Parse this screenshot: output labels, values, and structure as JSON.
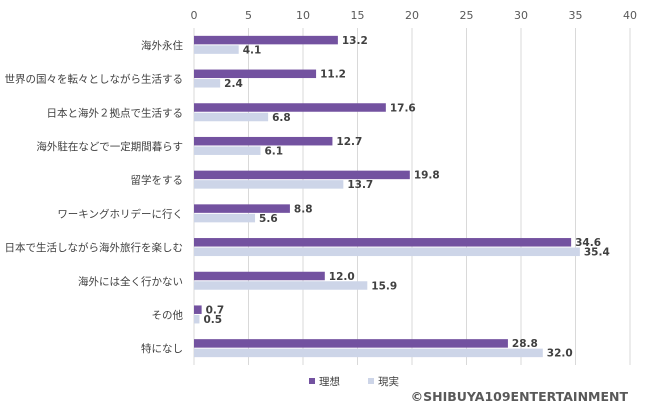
{
  "chart_data": {
    "type": "bar",
    "orientation": "horizontal",
    "categories": [
      "海外永住",
      "世界の国々を転々としながら生活する",
      "日本と海外２拠点で生活する",
      "海外駐在などで一定期間暮らす",
      "留学をする",
      "ワーキングホリデーに行く",
      "日本で生活しながら海外旅行を楽しむ",
      "海外には全く行かない",
      "その他",
      "特になし"
    ],
    "series": [
      {
        "name": "理想",
        "color": "#7352A0",
        "values": [
          13.2,
          11.2,
          17.6,
          12.7,
          19.8,
          8.8,
          34.6,
          12.0,
          0.7,
          28.8
        ],
        "labels": [
          "13.2",
          "11.2",
          "17.6",
          "12.7",
          "19.8",
          "8.8",
          "34.6",
          "12.0",
          "0.7",
          "28.8"
        ]
      },
      {
        "name": "現実",
        "color": "#CDD5E8",
        "values": [
          4.1,
          2.4,
          6.8,
          6.1,
          13.7,
          5.6,
          35.4,
          15.9,
          0.5,
          32.0
        ],
        "labels": [
          "4.1",
          "2.4",
          "6.8",
          "6.1",
          "13.7",
          "5.6",
          "35.4",
          "15.9",
          "0.5",
          "32.0"
        ]
      }
    ],
    "xlim": [
      0,
      40
    ],
    "xticks": [
      "0",
      "5",
      "10",
      "15",
      "20",
      "25",
      "30",
      "35",
      "40"
    ],
    "grid": true,
    "legend_position": "bottom-center"
  },
  "credit": "©SHIBUYA109ENTERTAINMENT"
}
